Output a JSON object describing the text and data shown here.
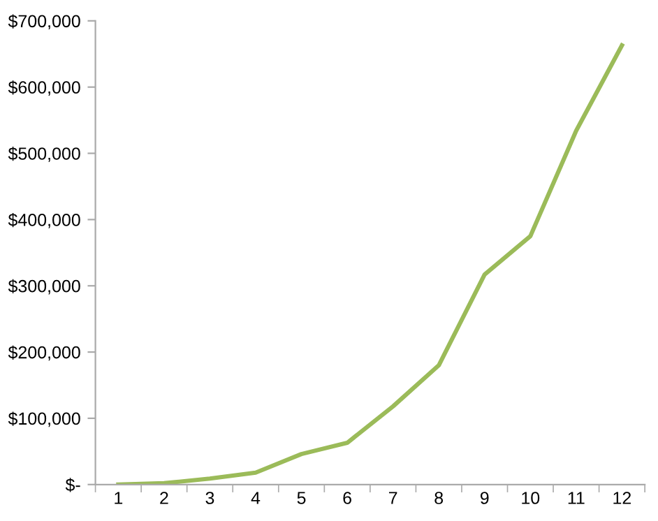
{
  "chart_data": {
    "type": "line",
    "categories": [
      "1",
      "2",
      "3",
      "4",
      "5",
      "6",
      "7",
      "8",
      "9",
      "10",
      "11",
      "12"
    ],
    "series": [
      {
        "color": "#9bbb59",
        "values": [
          0,
          2000,
          9000,
          18000,
          46000,
          63000,
          118000,
          180000,
          317000,
          375000,
          534000,
          663000
        ]
      }
    ],
    "ylim": [
      0,
      700000
    ],
    "yticks": [
      {
        "value": 0,
        "label": "$-"
      },
      {
        "value": 100000,
        "label": "$100,000"
      },
      {
        "value": 200000,
        "label": "$200,000"
      },
      {
        "value": 300000,
        "label": "$300,000"
      },
      {
        "value": 400000,
        "label": "$400,000"
      },
      {
        "value": 500000,
        "label": "$500,000"
      },
      {
        "value": 600000,
        "label": "$600,000"
      },
      {
        "value": 700000,
        "label": "$700,000"
      }
    ],
    "marker": "none",
    "line_style": "solid"
  }
}
